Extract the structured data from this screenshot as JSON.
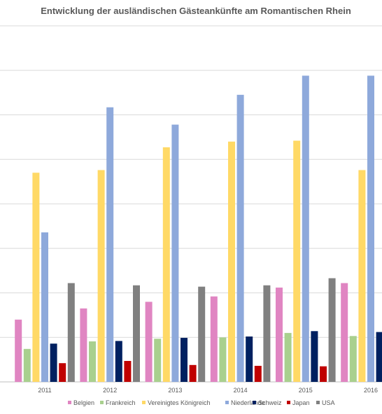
{
  "chart_data": {
    "type": "bar",
    "title": "Entwicklung der ausländischen Gästeankünfte am Romantischen Rhein",
    "xlabel": "",
    "ylabel": "",
    "categories": [
      "2011",
      "2012",
      "2013",
      "2014",
      "2015",
      "2016"
    ],
    "ylim": [
      0,
      8000
    ],
    "gridlines": true,
    "legend_position": "bottom",
    "series": [
      {
        "name": "Belgien",
        "color": "#E085C2",
        "values": [
          1400,
          1650,
          1800,
          1920,
          2120,
          2220
        ]
      },
      {
        "name": "Frankreich",
        "color": "#A9D08E",
        "values": [
          740,
          910,
          970,
          1000,
          1100,
          1030
        ]
      },
      {
        "name": "Vereinigtes Königreich",
        "color": "#FFD966",
        "values": [
          4700,
          4760,
          5270,
          5400,
          5420,
          4760
        ]
      },
      {
        "name": "Niederlande",
        "color": "#8EA9DB",
        "values": [
          3360,
          6170,
          5780,
          6450,
          6880,
          6880
        ]
      },
      {
        "name": "Schweiz",
        "color": "#002060",
        "values": [
          860,
          920,
          990,
          1020,
          1140,
          1120
        ]
      },
      {
        "name": "Japan",
        "color": "#C00000",
        "values": [
          420,
          470,
          380,
          360,
          350,
          370
        ]
      },
      {
        "name": "USA",
        "color": "#808080",
        "values": [
          2220,
          2170,
          2140,
          2170,
          2330,
          2370
        ]
      }
    ]
  }
}
